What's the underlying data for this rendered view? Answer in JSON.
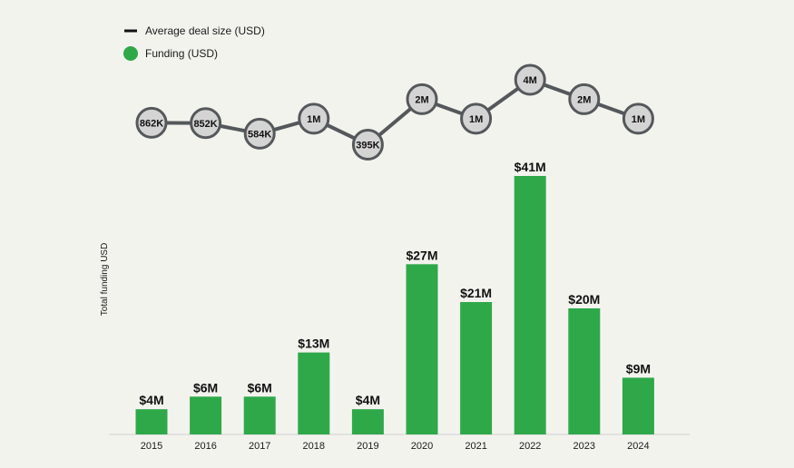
{
  "colors": {
    "background": "#f3f3ee",
    "funding_bar": "#2fa84a",
    "deal_line": "#55585b",
    "deal_node_fill": "#d4d4d4",
    "deal_node_stroke": "#55585b",
    "legend_line": "#111111",
    "axis_line": "#cfcfcf"
  },
  "chart_data": {
    "type": "bar",
    "title": "",
    "xlabel": "",
    "ylabel": "Total funding USD",
    "categories": [
      "2015",
      "2016",
      "2017",
      "2018",
      "2019",
      "2020",
      "2021",
      "2022",
      "2023",
      "2024"
    ],
    "legend_position": "top-left",
    "grid": false,
    "series": [
      {
        "name": "Funding (USD)",
        "type": "bar",
        "values": [
          4,
          6,
          6,
          13,
          4,
          27,
          21,
          41,
          20,
          9
        ],
        "value_labels": [
          "$4M",
          "$6M",
          "$6M",
          "$13M",
          "$4M",
          "$27M",
          "$21M",
          "$41M",
          "$20M",
          "$9M"
        ],
        "unit": "USD millions",
        "ylim": [
          0,
          41
        ]
      },
      {
        "name": "Average deal size (USD)",
        "type": "line",
        "values": [
          862000,
          852000,
          584000,
          1000000,
          395000,
          2000000,
          1000000,
          4000000,
          2000000,
          1000000
        ],
        "value_labels": [
          "862K",
          "852K",
          "584K",
          "1M",
          "395K",
          "2M",
          "1M",
          "4M",
          "2M",
          "1M"
        ],
        "unit": "USD"
      }
    ]
  }
}
